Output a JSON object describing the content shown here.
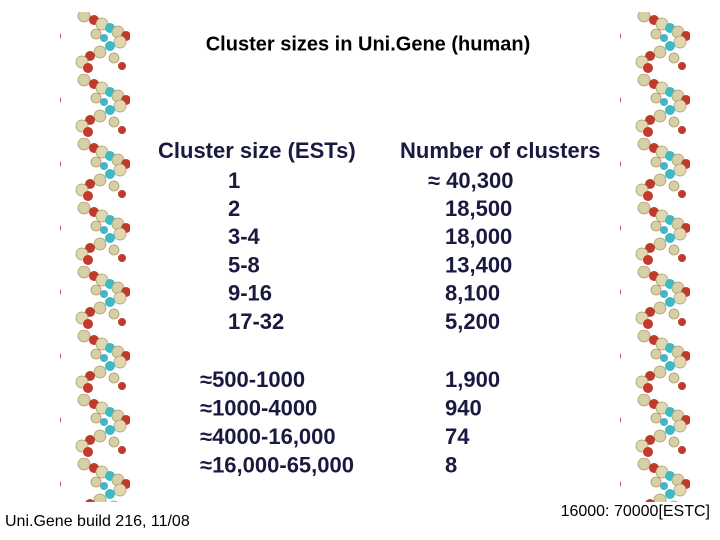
{
  "title": "Cluster sizes in Uni.Gene (human)",
  "table": {
    "header": [
      "Cluster size (ESTs)",
      "Number of clusters"
    ],
    "groups": [
      {
        "rows": [
          [
            "1",
            "≈ 40,300"
          ],
          [
            "2",
            "18,500"
          ],
          [
            "3-4",
            "18,000"
          ],
          [
            "5-8",
            "13,400"
          ],
          [
            "9-16",
            "8,100"
          ],
          [
            "17-32",
            "5,200"
          ]
        ]
      },
      {
        "rows": [
          [
            "≈500-1000",
            "1,900"
          ],
          [
            "≈1000-4000",
            "940"
          ],
          [
            "≈4000-16,000",
            "74"
          ],
          [
            "≈16,000-65,000",
            "8"
          ]
        ]
      }
    ]
  },
  "footer": {
    "left": "Uni.Gene build 216, 11/08",
    "right": "16000: 70000[ESTC]"
  }
}
